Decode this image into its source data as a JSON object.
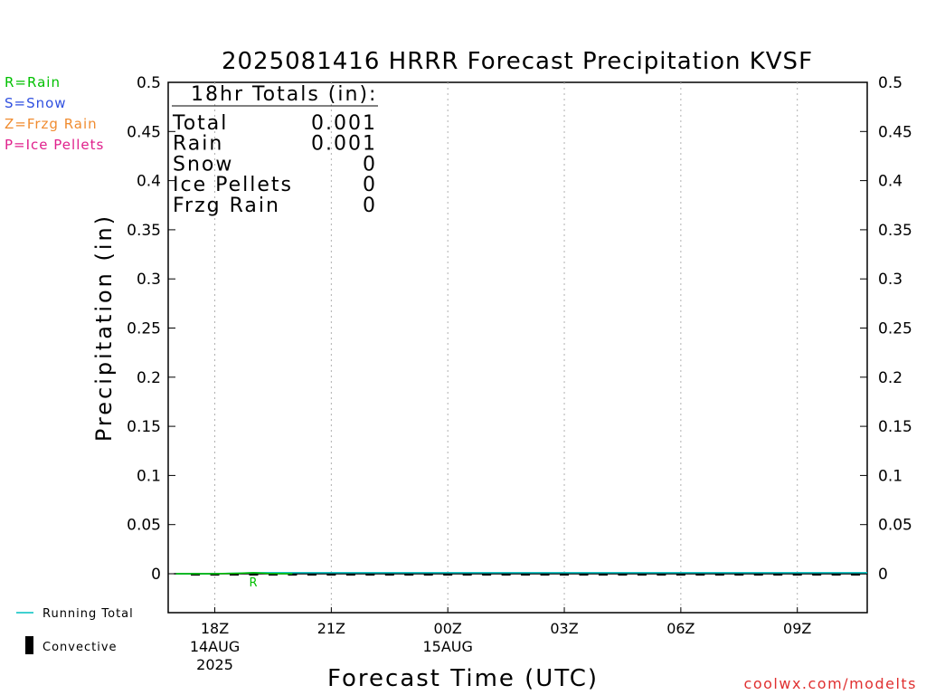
{
  "chart_data": {
    "type": "line",
    "title": "2025081416 HRRR Forecast Precipitation KVSF",
    "xlabel": "Forecast Time (UTC)",
    "ylabel": "Precipitation (in)",
    "ylim": [
      -0.04,
      0.5
    ],
    "yticks": [
      "0.5",
      "0.45",
      "0.4",
      "0.35",
      "0.3",
      "0.25",
      "0.2",
      "0.15",
      "0.1",
      "0.05",
      "0"
    ],
    "ytick_values": [
      0.5,
      0.45,
      0.4,
      0.35,
      0.3,
      0.25,
      0.2,
      0.15,
      0.1,
      0.05,
      0
    ],
    "xlim_hours": [
      16.8,
      34.8
    ],
    "xticks": [
      {
        "hour": 18,
        "line1": "18Z",
        "line2": "14AUG",
        "line3": "2025"
      },
      {
        "hour": 21,
        "line1": "21Z",
        "line2": "",
        "line3": ""
      },
      {
        "hour": 24,
        "line1": "00Z",
        "line2": "15AUG",
        "line3": ""
      },
      {
        "hour": 27,
        "line1": "03Z",
        "line2": "",
        "line3": ""
      },
      {
        "hour": 30,
        "line1": "06Z",
        "line2": "",
        "line3": ""
      },
      {
        "hour": 33,
        "line1": "09Z",
        "line2": "",
        "line3": ""
      }
    ],
    "series": [
      {
        "name": "Running Total",
        "color": "#00c0c0",
        "x": [
          17,
          18,
          19,
          20,
          21,
          22,
          23,
          24,
          25,
          26,
          27,
          28,
          29,
          30,
          31,
          32,
          33,
          34,
          34.8
        ],
        "values": [
          0,
          0,
          0.001,
          0.001,
          0.001,
          0.001,
          0.001,
          0.001,
          0.001,
          0.001,
          0.001,
          0.001,
          0.001,
          0.001,
          0.001,
          0.001,
          0.001,
          0.001,
          0.001
        ]
      },
      {
        "name": "Rain",
        "color": "#00c000",
        "x": [
          17,
          18,
          18.6,
          19,
          19.4,
          20
        ],
        "values": [
          0,
          0,
          0.0005,
          0.001,
          0.0003,
          0
        ]
      }
    ],
    "convective_x": [
      17.5,
      18,
      18.5,
      19,
      19.5,
      20,
      20.5,
      21,
      21.5,
      22,
      22.5,
      23,
      23.5,
      24,
      24.5,
      25,
      25.5,
      26,
      26.5,
      27,
      27.5,
      28,
      28.5,
      29,
      29.5,
      30,
      30.5,
      31,
      31.5,
      32,
      32.5,
      33,
      33.5,
      34,
      34.5
    ],
    "precip_type_markers": [
      {
        "hour": 19,
        "label": "R",
        "color": "#00c000"
      }
    ],
    "totals": {
      "heading": "18hr Totals (in):",
      "rows": [
        {
          "label": "Total",
          "value": "0.001"
        },
        {
          "label": "Rain",
          "value": "0.001"
        },
        {
          "label": "Snow",
          "value": "0"
        },
        {
          "label": "Ice Pellets",
          "value": "0"
        },
        {
          "label": "Frzg Rain",
          "value": "0"
        }
      ]
    },
    "type_legend": [
      {
        "text": "R=Rain",
        "color": "#00c000"
      },
      {
        "text": "S=Snow",
        "color": "#3050e0"
      },
      {
        "text": "Z=Frzg Rain",
        "color": "#f08c30"
      },
      {
        "text": "P=Ice Pellets",
        "color": "#e0208c"
      }
    ],
    "bottom_legend": {
      "running_total": "Running Total",
      "convective": "Convective"
    },
    "footer": "coolwx.com/modelts",
    "grid": "vertical dotted"
  }
}
